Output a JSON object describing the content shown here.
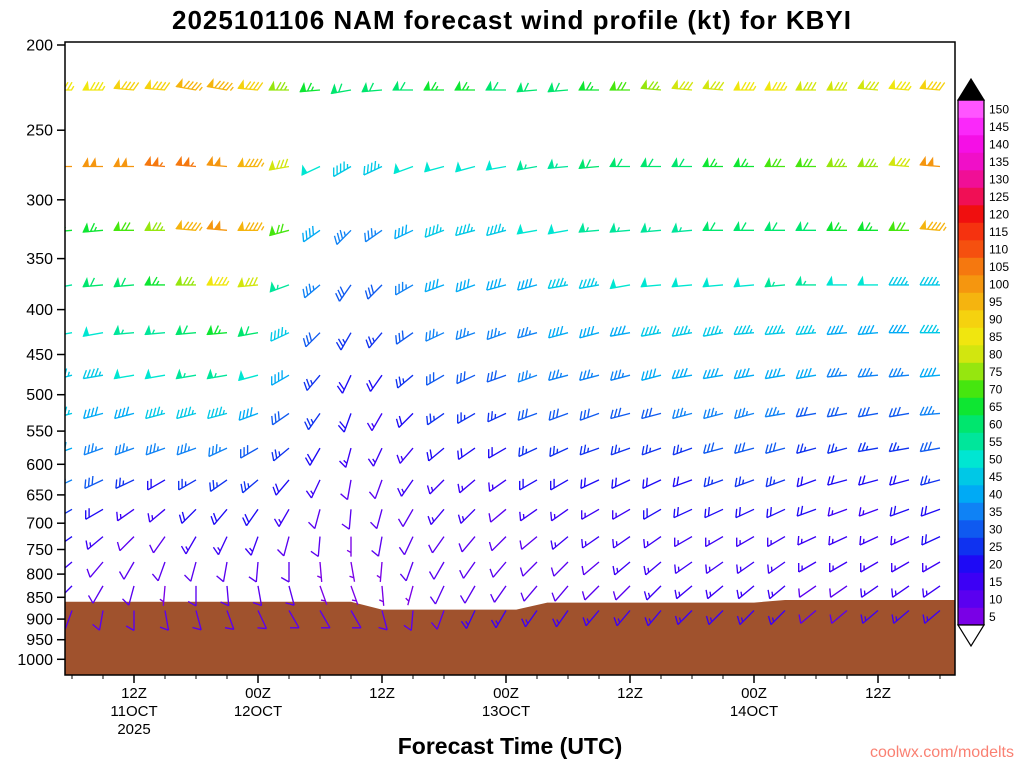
{
  "header": {
    "title": "2025101106 NAM forecast wind profile (kt) for KBYI"
  },
  "axis": {
    "x_title": "Forecast Time (UTC)"
  },
  "watermark": {
    "text": "coolwx.com/modelts"
  },
  "chart_data": {
    "type": "wind-barb-time-height",
    "units": "kt",
    "time_step_hours": 3,
    "max_forecast_hour": 84,
    "pressure_ticks": [
      200,
      250,
      300,
      350,
      400,
      450,
      500,
      550,
      600,
      650,
      700,
      750,
      800,
      850,
      900,
      950,
      1000
    ],
    "time_ticks": [
      {
        "hour": 6,
        "label": "12Z"
      },
      {
        "hour": 18,
        "label": "00Z"
      },
      {
        "hour": 30,
        "label": "12Z"
      },
      {
        "hour": 42,
        "label": "00Z"
      },
      {
        "hour": 54,
        "label": "12Z"
      },
      {
        "hour": 66,
        "label": "00Z"
      },
      {
        "hour": 78,
        "label": "12Z"
      }
    ],
    "date_ticks": [
      {
        "hour": 6,
        "lines": [
          "11OCT",
          "2025"
        ]
      },
      {
        "hour": 18,
        "lines": [
          "12OCT"
        ]
      },
      {
        "hour": 42,
        "lines": [
          "13OCT"
        ]
      },
      {
        "hour": 66,
        "lines": [
          "14OCT"
        ]
      }
    ],
    "colorbar": {
      "min": 5,
      "max": 150,
      "step": 5,
      "colors": [
        "#7a00e6",
        "#5a00f0",
        "#3c00f5",
        "#1e0af5",
        "#0f32f0",
        "#0f5af0",
        "#0f82f5",
        "#00aaf5",
        "#00c8e6",
        "#00e6d2",
        "#00e69b",
        "#00e66e",
        "#0ee632",
        "#46e60f",
        "#96e60f",
        "#d2e60f",
        "#f0e60f",
        "#f5d20f",
        "#f5b40f",
        "#f5960f",
        "#f5780f",
        "#f5500f",
        "#f5320f",
        "#f00f0f",
        "#f00f55",
        "#f00f96",
        "#f00fc8",
        "#f50fe6",
        "#fa28fa",
        "#ff55ff"
      ]
    },
    "terrain": {
      "color": "#A0522D",
      "profile": [
        {
          "hour": 0,
          "pressure": 860
        },
        {
          "hour": 27,
          "pressure": 860
        },
        {
          "hour": 30,
          "pressure": 878
        },
        {
          "hour": 43,
          "pressure": 878
        },
        {
          "hour": 46,
          "pressure": 862
        },
        {
          "hour": 66,
          "pressure": 862
        },
        {
          "hour": 69,
          "pressure": 856
        },
        {
          "hour": 84,
          "pressure": 856
        }
      ]
    },
    "levels": [
      {
        "pressure": 225,
        "speeds": [
          85,
          85,
          90,
          90,
          95,
          95,
          90,
          75,
          65,
          60,
          60,
          60,
          65,
          65,
          60,
          60,
          60,
          65,
          70,
          75,
          80,
          80,
          85,
          85,
          80,
          80,
          80,
          85,
          90
        ],
        "dirs": [
          270,
          270,
          275,
          275,
          280,
          280,
          275,
          270,
          265,
          260,
          265,
          270,
          270,
          270,
          270,
          265,
          265,
          270,
          270,
          275,
          275,
          275,
          270,
          270,
          270,
          270,
          275,
          275,
          275
        ]
      },
      {
        "pressure": 275,
        "speeds": [
          100,
          100,
          100,
          105,
          105,
          100,
          95,
          80,
          50,
          45,
          45,
          50,
          50,
          50,
          50,
          55,
          55,
          60,
          60,
          60,
          60,
          65,
          65,
          70,
          70,
          75,
          75,
          80,
          100
        ],
        "dirs": [
          270,
          270,
          270,
          275,
          275,
          275,
          270,
          260,
          245,
          240,
          245,
          250,
          255,
          255,
          260,
          260,
          265,
          265,
          270,
          270,
          270,
          270,
          270,
          270,
          270,
          270,
          270,
          275,
          275
        ]
      },
      {
        "pressure": 325,
        "speeds": [
          65,
          65,
          70,
          75,
          95,
          100,
          95,
          70,
          40,
          35,
          35,
          40,
          45,
          45,
          45,
          50,
          50,
          55,
          55,
          55,
          55,
          60,
          60,
          60,
          60,
          65,
          65,
          70,
          95
        ],
        "dirs": [
          265,
          265,
          270,
          270,
          275,
          275,
          270,
          255,
          235,
          225,
          235,
          245,
          250,
          255,
          255,
          260,
          260,
          265,
          265,
          265,
          265,
          270,
          270,
          270,
          270,
          270,
          270,
          270,
          275
        ]
      },
      {
        "pressure": 375,
        "speeds": [
          55,
          60,
          60,
          65,
          75,
          85,
          80,
          55,
          35,
          30,
          30,
          35,
          40,
          40,
          40,
          40,
          45,
          45,
          50,
          50,
          50,
          50,
          50,
          55,
          55,
          50,
          50,
          45,
          45
        ],
        "dirs": [
          260,
          265,
          265,
          270,
          270,
          270,
          265,
          250,
          230,
          215,
          225,
          240,
          250,
          250,
          255,
          255,
          260,
          260,
          260,
          265,
          265,
          265,
          265,
          265,
          270,
          270,
          270,
          270,
          270
        ]
      },
      {
        "pressure": 425,
        "speeds": [
          50,
          50,
          55,
          55,
          60,
          65,
          60,
          45,
          30,
          25,
          25,
          30,
          35,
          35,
          35,
          35,
          40,
          40,
          40,
          45,
          45,
          45,
          45,
          45,
          45,
          40,
          40,
          40,
          45
        ],
        "dirs": [
          260,
          260,
          265,
          265,
          265,
          265,
          260,
          245,
          225,
          210,
          220,
          235,
          245,
          250,
          250,
          255,
          255,
          255,
          260,
          260,
          260,
          260,
          265,
          265,
          265,
          265,
          265,
          270,
          270
        ]
      },
      {
        "pressure": 475,
        "speeds": [
          45,
          45,
          50,
          50,
          55,
          55,
          50,
          40,
          25,
          20,
          20,
          25,
          30,
          30,
          30,
          35,
          35,
          35,
          35,
          40,
          40,
          40,
          40,
          40,
          40,
          35,
          35,
          35,
          40
        ],
        "dirs": [
          255,
          260,
          260,
          260,
          260,
          260,
          255,
          240,
          220,
          205,
          215,
          230,
          240,
          245,
          250,
          250,
          255,
          255,
          255,
          255,
          260,
          260,
          260,
          260,
          260,
          265,
          265,
          265,
          265
        ]
      },
      {
        "pressure": 525,
        "speeds": [
          45,
          40,
          40,
          45,
          45,
          45,
          40,
          30,
          25,
          20,
          15,
          20,
          25,
          25,
          25,
          30,
          30,
          30,
          30,
          30,
          35,
          35,
          35,
          35,
          30,
          30,
          30,
          30,
          35
        ],
        "dirs": [
          255,
          255,
          255,
          255,
          255,
          255,
          250,
          235,
          215,
          200,
          210,
          225,
          235,
          240,
          245,
          250,
          250,
          250,
          255,
          255,
          255,
          255,
          255,
          260,
          260,
          260,
          260,
          260,
          265
        ]
      },
      {
        "pressure": 575,
        "speeds": [
          40,
          35,
          35,
          35,
          35,
          35,
          30,
          25,
          20,
          15,
          15,
          15,
          20,
          20,
          20,
          25,
          25,
          25,
          25,
          25,
          25,
          30,
          30,
          30,
          25,
          25,
          25,
          25,
          30
        ],
        "dirs": [
          250,
          250,
          250,
          250,
          250,
          245,
          240,
          230,
          210,
          195,
          205,
          220,
          230,
          235,
          240,
          245,
          245,
          250,
          250,
          250,
          250,
          255,
          255,
          255,
          255,
          255,
          260,
          260,
          260
        ]
      },
      {
        "pressure": 625,
        "speeds": [
          35,
          30,
          25,
          20,
          25,
          25,
          25,
          20,
          15,
          10,
          10,
          15,
          15,
          15,
          15,
          20,
          20,
          20,
          20,
          20,
          20,
          25,
          25,
          25,
          20,
          20,
          20,
          20,
          25
        ],
        "dirs": [
          245,
          245,
          245,
          240,
          240,
          235,
          230,
          220,
          205,
          190,
          200,
          215,
          225,
          230,
          235,
          240,
          240,
          245,
          245,
          245,
          250,
          250,
          250,
          250,
          250,
          255,
          255,
          255,
          255
        ]
      },
      {
        "pressure": 675,
        "speeds": [
          25,
          20,
          15,
          15,
          20,
          20,
          20,
          15,
          10,
          10,
          10,
          10,
          15,
          15,
          10,
          15,
          15,
          15,
          15,
          20,
          20,
          20,
          20,
          20,
          20,
          15,
          15,
          20,
          20
        ],
        "dirs": [
          240,
          240,
          235,
          230,
          225,
          220,
          215,
          210,
          195,
          185,
          195,
          210,
          220,
          225,
          230,
          235,
          235,
          240,
          240,
          240,
          245,
          245,
          245,
          245,
          250,
          250,
          250,
          250,
          250
        ]
      },
      {
        "pressure": 725,
        "speeds": [
          20,
          15,
          10,
          10,
          15,
          15,
          15,
          10,
          10,
          5,
          10,
          10,
          10,
          10,
          10,
          10,
          15,
          15,
          15,
          15,
          15,
          15,
          15,
          15,
          15,
          15,
          15,
          15,
          20
        ],
        "dirs": [
          235,
          230,
          225,
          215,
          210,
          205,
          200,
          195,
          185,
          180,
          190,
          205,
          215,
          220,
          225,
          230,
          230,
          235,
          235,
          235,
          240,
          240,
          240,
          240,
          245,
          245,
          245,
          245,
          245
        ]
      },
      {
        "pressure": 775,
        "speeds": [
          15,
          10,
          10,
          10,
          10,
          10,
          10,
          10,
          5,
          5,
          5,
          10,
          10,
          10,
          10,
          10,
          10,
          10,
          15,
          15,
          15,
          15,
          15,
          15,
          15,
          15,
          15,
          15,
          15
        ],
        "dirs": [
          230,
          220,
          210,
          200,
          195,
          190,
          185,
          180,
          175,
          170,
          185,
          200,
          210,
          215,
          220,
          225,
          225,
          230,
          230,
          230,
          235,
          235,
          235,
          235,
          240,
          240,
          240,
          240,
          240
        ]
      },
      {
        "pressure": 825,
        "speeds": [
          15,
          10,
          10,
          5,
          10,
          10,
          10,
          10,
          5,
          5,
          5,
          5,
          10,
          10,
          10,
          10,
          10,
          10,
          10,
          15,
          15,
          15,
          15,
          15,
          10,
          10,
          15,
          15,
          15
        ],
        "dirs": [
          225,
          210,
          195,
          185,
          180,
          175,
          170,
          165,
          160,
          160,
          175,
          195,
          205,
          210,
          215,
          220,
          220,
          225,
          225,
          225,
          230,
          230,
          230,
          230,
          235,
          235,
          235,
          235,
          235
        ]
      },
      {
        "pressure": 880,
        "speeds": [
          10,
          10,
          10,
          10,
          10,
          10,
          10,
          10,
          10,
          10,
          10,
          10,
          10,
          15,
          15,
          15,
          15,
          15,
          15,
          15,
          15,
          15,
          15,
          15,
          10,
          10,
          15,
          15,
          15
        ],
        "dirs": [
          200,
          190,
          180,
          170,
          165,
          160,
          155,
          150,
          150,
          150,
          165,
          185,
          200,
          205,
          210,
          215,
          215,
          220,
          220,
          220,
          225,
          225,
          225,
          225,
          230,
          230,
          230,
          230,
          230
        ]
      }
    ]
  }
}
